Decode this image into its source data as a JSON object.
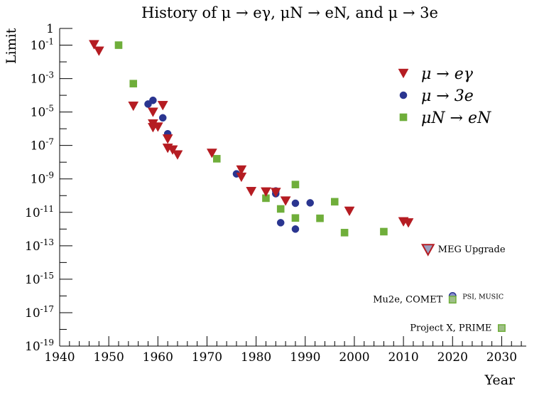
{
  "chart_data": {
    "type": "scatter",
    "title": "History of μ → eγ,  μN → eN,  and μ → 3e",
    "xlabel": "Year",
    "ylabel": "Limit",
    "xlim": [
      1940,
      2035
    ],
    "ylim": [
      1e-19,
      1
    ],
    "yscale": "log",
    "grid": false,
    "legend_position": "top-right",
    "x_ticks": [
      "1940",
      "1950",
      "1960",
      "1970",
      "1980",
      "1990",
      "2000",
      "2010",
      "2020",
      "2030"
    ],
    "y_ticks": [
      {
        "label": "1",
        "exp": 0
      },
      {
        "label": "10^-1",
        "base": "10",
        "sup": "-1",
        "exp": -1
      },
      {
        "label": "10^-3",
        "base": "10",
        "sup": "-3",
        "exp": -3
      },
      {
        "label": "10^-5",
        "base": "10",
        "sup": "-5",
        "exp": -5
      },
      {
        "label": "10^-7",
        "base": "10",
        "sup": "-7",
        "exp": -7
      },
      {
        "label": "10^-9",
        "base": "10",
        "sup": "-9",
        "exp": -9
      },
      {
        "label": "10^-11",
        "base": "10",
        "sup": "-11",
        "exp": -11
      },
      {
        "label": "10^-13",
        "base": "10",
        "sup": "-13",
        "exp": -13
      },
      {
        "label": "10^-15",
        "base": "10",
        "sup": "-15",
        "exp": -15
      },
      {
        "label": "10^-17",
        "base": "10",
        "sup": "-17",
        "exp": -17
      },
      {
        "label": "10^-19",
        "base": "10",
        "sup": "-19",
        "exp": -19
      }
    ],
    "series": [
      {
        "name": "μ → eγ",
        "marker": "triangle-down",
        "color": "#b51c22",
        "points": [
          [
            1947,
            0.11
          ],
          [
            1948,
            0.045
          ],
          [
            1955,
            2.3e-05
          ],
          [
            1959,
            1e-05
          ],
          [
            1959,
            2e-06
          ],
          [
            1959,
            1.2e-06
          ],
          [
            1960,
            1.3e-06
          ],
          [
            1961,
            2.5e-05
          ],
          [
            1962,
            2.5e-07
          ],
          [
            1962,
            7e-08
          ],
          [
            1963,
            5.5e-08
          ],
          [
            1964,
            2.8e-08
          ],
          [
            1971,
            3.5e-08
          ],
          [
            1977,
            3.5e-09
          ],
          [
            1977,
            1.3e-09
          ],
          [
            1979,
            1.8e-10
          ],
          [
            1982,
            1.7e-10
          ],
          [
            1984,
            1.6e-10
          ],
          [
            1986,
            4.9e-11
          ],
          [
            1999,
            1.2e-11
          ],
          [
            2010,
            2.8e-12
          ],
          [
            2011,
            2.4e-12
          ]
        ]
      },
      {
        "name": "μ → 3e",
        "marker": "circle",
        "color": "#2a3590",
        "points": [
          [
            1958,
            3e-05
          ],
          [
            1959,
            5e-05
          ],
          [
            1961,
            4.5e-06
          ],
          [
            1962,
            5e-07
          ],
          [
            1976,
            2e-09
          ],
          [
            1984,
            1.9e-10
          ],
          [
            1984,
            1.3e-10
          ],
          [
            1985,
            2.4e-12
          ],
          [
            1988,
            3.5e-11
          ],
          [
            1988,
            1e-12
          ],
          [
            1991,
            3.7e-11
          ]
        ]
      },
      {
        "name": "μN → eN",
        "marker": "square",
        "color": "#6fae3a",
        "points": [
          [
            1952,
            0.1
          ],
          [
            1955,
            0.0005
          ],
          [
            1972,
            1.6e-08
          ],
          [
            1982,
            7e-11
          ],
          [
            1985,
            1.6e-11
          ],
          [
            1988,
            4.6e-10
          ],
          [
            1988,
            4.6e-12
          ],
          [
            1993,
            4.4e-12
          ],
          [
            1996,
            4.3e-11
          ],
          [
            1998,
            6.1e-13
          ],
          [
            2006,
            7e-13
          ]
        ]
      }
    ],
    "projections": [
      {
        "label": "MEG Upgrade",
        "x": 2015,
        "y": 6e-14,
        "marker": "triangle-down",
        "color": "#b51c22",
        "fill": "#9aa0c0",
        "size": "large",
        "label_side": "right"
      },
      {
        "label": "PSI, MUSIC",
        "x": 2020,
        "y": 1e-16,
        "marker": "circle",
        "color": "#2a3590",
        "fill": "#8a8fcc",
        "size": "small",
        "label_side": "right"
      },
      {
        "label": "Mu2e, COMET",
        "x": 2020,
        "y": 6e-17,
        "marker": "square",
        "color": "#6fae3a",
        "fill": "#9fbf88",
        "size": "normal",
        "label_side": "left"
      },
      {
        "label": "Project X, PRIME",
        "x": 2030,
        "y": 1.2e-18,
        "marker": "square",
        "color": "#6fae3a",
        "fill": "#9fbf88",
        "size": "normal",
        "label_side": "left"
      }
    ]
  }
}
